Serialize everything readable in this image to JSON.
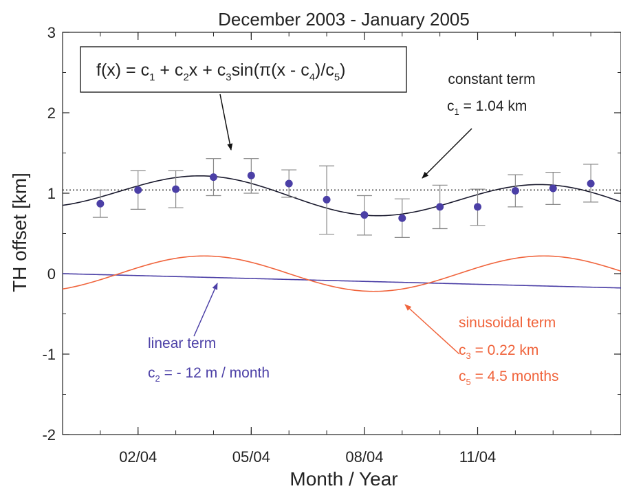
{
  "chart_data": {
    "type": "line",
    "title": "December 2003 - January 2005",
    "xlabel": "Month / Year",
    "ylabel": "TH offset [km]",
    "xlim": [
      12.0,
      26.8
    ],
    "ylim": [
      -2,
      3
    ],
    "grid": false,
    "x_ticks": [
      {
        "x": 14,
        "label": "02/04"
      },
      {
        "x": 17,
        "label": "05/04"
      },
      {
        "x": 20,
        "label": "08/04"
      },
      {
        "x": 23,
        "label": "11/04"
      }
    ],
    "y_ticks": [
      {
        "y": 3,
        "label": "3"
      },
      {
        "y": 2,
        "label": "2"
      },
      {
        "y": 1,
        "label": "1"
      },
      {
        "y": 0,
        "label": "0"
      },
      {
        "y": -1,
        "label": "-1"
      },
      {
        "y": -2,
        "label": "-2"
      }
    ],
    "measurements": {
      "x": [
        13,
        14,
        15,
        16,
        17,
        18,
        19,
        20,
        21,
        22,
        23,
        24,
        25,
        26
      ],
      "y": [
        0.87,
        1.04,
        1.05,
        1.2,
        1.22,
        1.12,
        0.92,
        0.73,
        0.69,
        0.83,
        0.83,
        1.03,
        1.06,
        1.12
      ],
      "y_low": [
        0.7,
        0.8,
        0.82,
        0.97,
        1.0,
        0.95,
        0.49,
        0.48,
        0.45,
        0.56,
        0.6,
        0.83,
        0.86,
        0.89
      ],
      "y_high": [
        1.04,
        1.28,
        1.28,
        1.43,
        1.43,
        1.29,
        1.34,
        0.97,
        0.93,
        1.1,
        1.05,
        1.23,
        1.26,
        1.36
      ]
    },
    "fit_model": {
      "c1": 1.04,
      "c2": -0.012,
      "c3": 0.22,
      "c4": 13.5,
      "c5": 4.5
    },
    "series": [
      {
        "key": "fit",
        "color": "#1a1a2e",
        "style": "solid"
      },
      {
        "key": "constant",
        "color": "#222222",
        "style": "dotted"
      },
      {
        "key": "linear",
        "color": "#4b3fa6",
        "style": "solid"
      },
      {
        "key": "sinusoidal",
        "color": "#f0643c",
        "style": "solid"
      }
    ],
    "marker_color": "#4b3fa6",
    "errorbar_color": "#888888",
    "annotations": {
      "formula": {
        "f": "f(x) = c",
        "s1": "1",
        "t1": " + c",
        "s2": "2",
        "t2": "x + c",
        "s3": "3",
        "t3": "sin(π(x - c",
        "s4": "4",
        "t4": ")/c",
        "s5": "5",
        "t5": ")"
      },
      "constant_term": {
        "line1": "constant term",
        "line2_c": "c",
        "line2_sub": "1",
        "line2_rest": " = 1.04 km"
      },
      "linear_term": {
        "line1": "linear term",
        "line2_c": "c",
        "line2_sub": "2",
        "line2_rest": " = - 12 m / month"
      },
      "sinusoidal_term": {
        "line1": "sinusoidal term",
        "line2_c": "c",
        "line2_sub": "3",
        "line2_rest": " = 0.22 km",
        "line3_c": "c",
        "line3_sub": "5",
        "line3_rest": " = 4.5 months"
      }
    }
  }
}
